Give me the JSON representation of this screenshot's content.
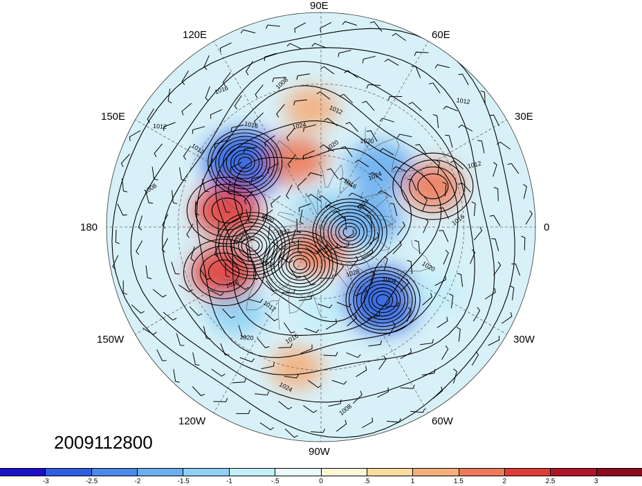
{
  "map": {
    "projection": "polar-stereographic-north",
    "longitude_labels": {
      "lon_90e": "90E",
      "lon_60e": "60E",
      "lon_30e": "30E",
      "lon_0": "0",
      "lon_30w": "30W",
      "lon_60w": "60W",
      "lon_90w": "90W",
      "lon_120w": "120W",
      "lon_150w": "150W",
      "lon_180": "180",
      "lon_150e": "150E",
      "lon_120e": "120E"
    },
    "contour_labels": [
      "1024",
      "1024",
      "1020",
      "1012",
      "1008",
      "1016",
      "1012",
      "1020",
      "1024",
      "1016",
      "1020",
      "1024",
      "1008",
      "1028",
      "1004",
      "1020",
      "1016",
      "1012",
      "1012",
      "1016",
      "1020",
      "1024",
      "1016",
      "1012",
      "1008",
      "1012",
      "1008",
      "1012",
      "1016"
    ],
    "timestamp": "2009112800"
  },
  "colorbar": {
    "ticks": [
      "-3",
      "-2.5",
      "-2",
      "-1.5",
      "-1",
      "-.5",
      "0",
      ".5",
      "1",
      "1.5",
      "2",
      "2.5",
      "3"
    ],
    "colors": [
      "#1a10c8",
      "#2f5fe0",
      "#4a8ae8",
      "#6aaef0",
      "#8fd0f4",
      "#c2eefa",
      "#eaf9fc",
      "#fdf7d6",
      "#f8dca0",
      "#f4ae7c",
      "#ee7a5a",
      "#e03d3a",
      "#b01428",
      "#8a0a1e"
    ]
  },
  "anomaly_centers": {
    "negative": [
      {
        "lon": 140,
        "lat": 48,
        "value": -3
      },
      {
        "lon": -50,
        "lat": 50,
        "value": -3
      },
      {
        "lon": 80,
        "lat": 85,
        "value": -1.5
      },
      {
        "lon": 45,
        "lat": 55,
        "value": -2
      },
      {
        "lon": 10,
        "lat": 70,
        "value": -2
      },
      {
        "lon": -135,
        "lat": 40,
        "value": -1.5
      },
      {
        "lon": -90,
        "lat": 55,
        "value": -1
      },
      {
        "lon": -30,
        "lat": 35,
        "value": -1
      }
    ],
    "positive": [
      {
        "lon": 170,
        "lat": 50,
        "value": 2
      },
      {
        "lon": -155,
        "lat": 45,
        "value": 2
      },
      {
        "lon": 110,
        "lat": 60,
        "value": 1.5
      },
      {
        "lon": 20,
        "lat": 40,
        "value": 1.5
      },
      {
        "lon": -100,
        "lat": 80,
        "value": 1.5
      },
      {
        "lon": -100,
        "lat": 30,
        "value": 1
      },
      {
        "lon": 95,
        "lat": 40,
        "value": 1
      }
    ]
  }
}
